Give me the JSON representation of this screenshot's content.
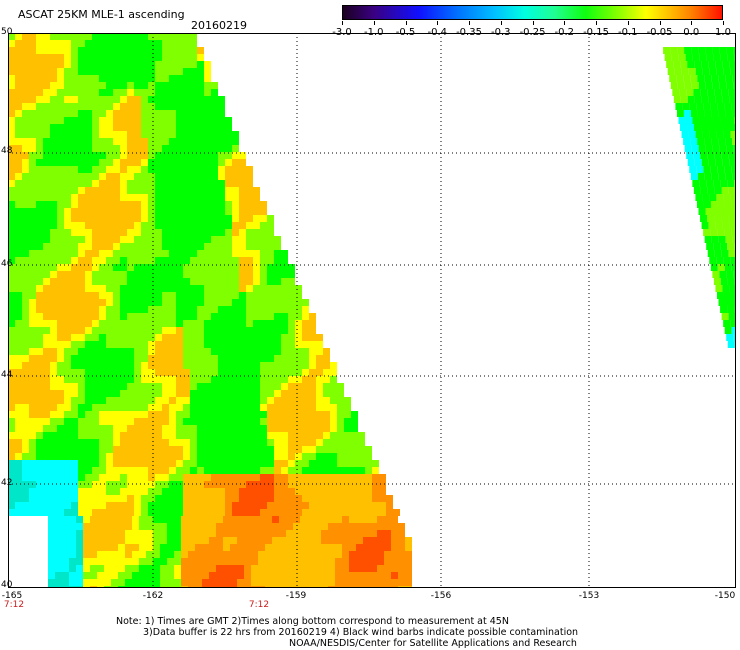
{
  "header": {
    "title": "ASCAT 25KM MLE-1 ascending",
    "date": "20160219"
  },
  "colorbar": {
    "labels": [
      "-3.0",
      "-1.0",
      "-0.5",
      "-0.4",
      "-0.35",
      "-0.3",
      "-0.25",
      "-0.2",
      "-0.15",
      "-0.1",
      "-0.05",
      "0.0",
      "1.0"
    ]
  },
  "map": {
    "lat_labels": [
      "50",
      "48",
      "46",
      "44",
      "42",
      "40"
    ],
    "lon_labels": [
      "-165",
      "-162",
      "-159",
      "-156",
      "-153",
      "-150"
    ],
    "time_labels": [
      "7:12",
      "7:12"
    ],
    "palette": {
      "cyan": "#00ffff",
      "teal": "#00e6c8",
      "green": "#00ff00",
      "lime": "#80ff00",
      "yellow": "#ffff00",
      "gold": "#ffc000",
      "orange": "#ff9000",
      "red": "#ff5000"
    }
  },
  "notes": {
    "line1": "Note: 1) Times are GMT 2)Times along bottom correspond to measurement at 45N",
    "line2": "3)Data buffer is 22 hrs from 20160219 4) Black wind barbs indicate possible contamination",
    "line3": "NOAA/NESDIS/Center for Satellite Applications and Research"
  }
}
